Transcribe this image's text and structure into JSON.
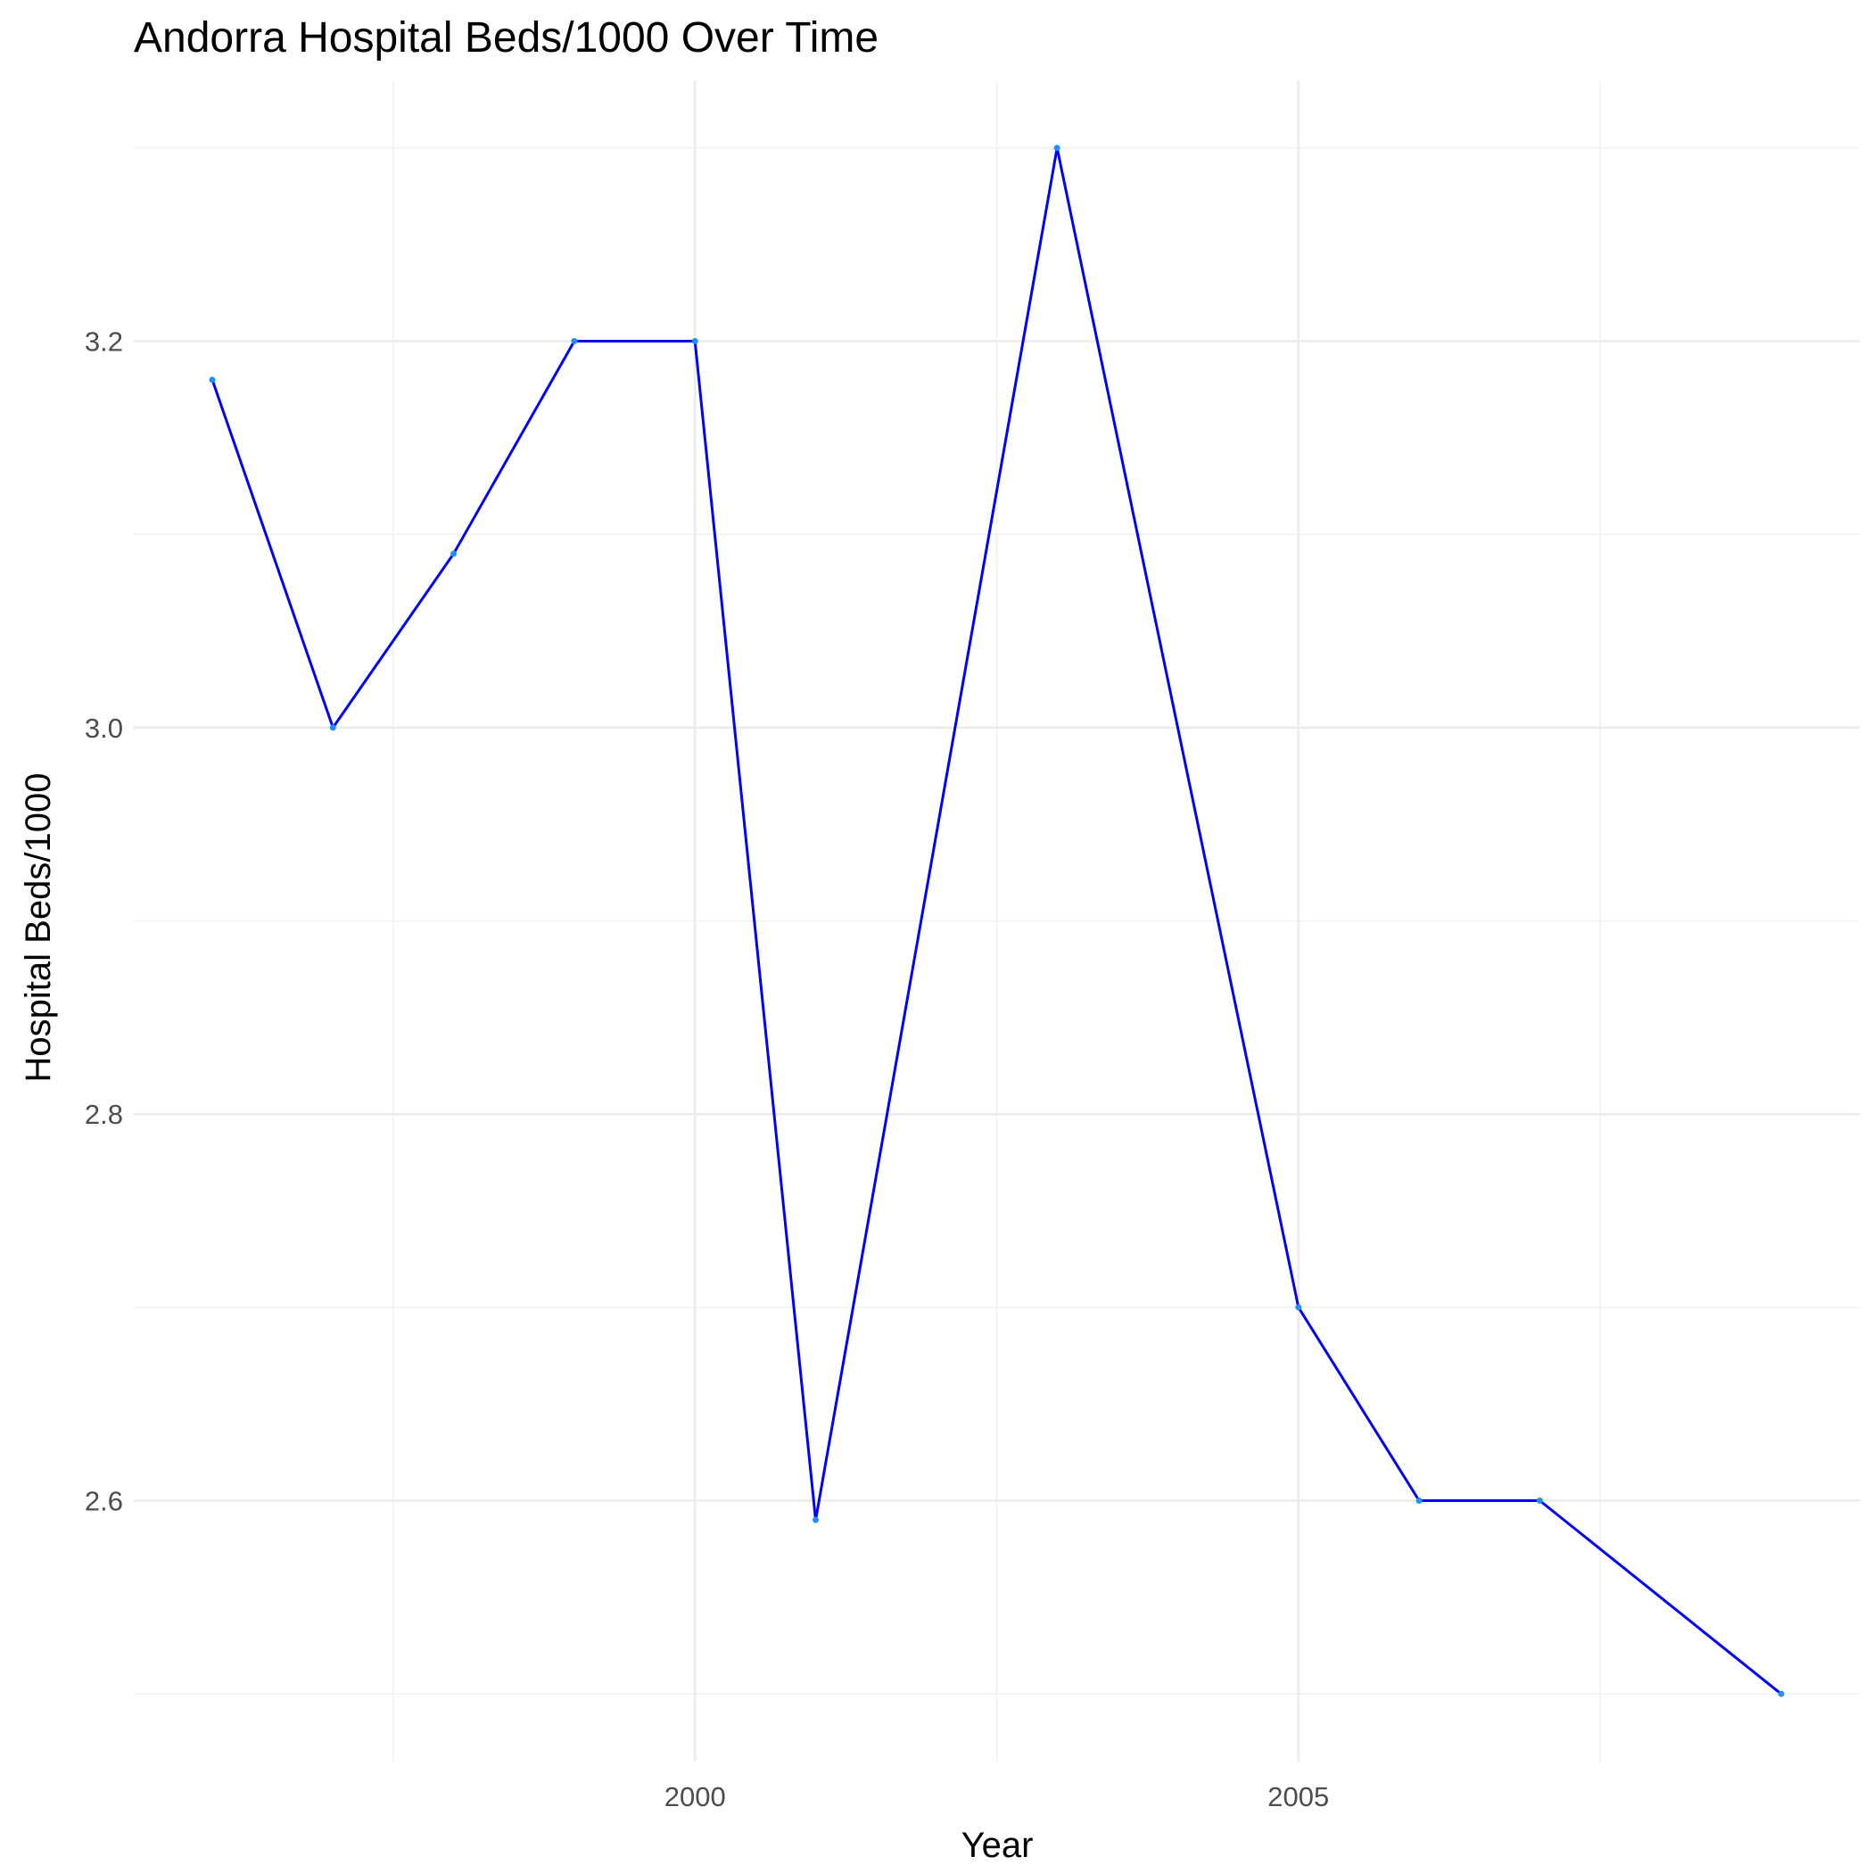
{
  "chart_data": {
    "type": "line",
    "title": "Andorra Hospital Beds/1000 Over Time",
    "xlabel": "Year",
    "ylabel": "Hospital Beds/1000",
    "xlim": [
      1995.35,
      2009.65
    ],
    "ylim": [
      2.465,
      3.335
    ],
    "x_major_ticks": [
      2000,
      2005
    ],
    "x_minor_ticks": [
      1997.5,
      2002.5,
      2007.5
    ],
    "y_major_ticks": [
      2.6,
      2.8,
      3.0,
      3.2
    ],
    "y_minor_ticks": [
      2.5,
      2.7,
      2.9,
      3.1,
      3.3
    ],
    "x_tick_labels": [
      "2000",
      "2005"
    ],
    "y_tick_labels": [
      "2.6",
      "2.8",
      "3.0",
      "3.2"
    ],
    "grid": true,
    "legend": "none",
    "line_color": "#0000ff",
    "point_color": "#1e90ff",
    "series": [
      {
        "x": [
          1996,
          1997,
          1998,
          1999,
          2000,
          2001,
          2003,
          2005,
          2006,
          2007,
          2009
        ],
        "y": [
          3.18,
          3.0,
          3.09,
          3.2,
          3.2,
          2.59,
          3.3,
          2.7,
          2.6,
          2.6,
          2.5
        ]
      }
    ]
  }
}
